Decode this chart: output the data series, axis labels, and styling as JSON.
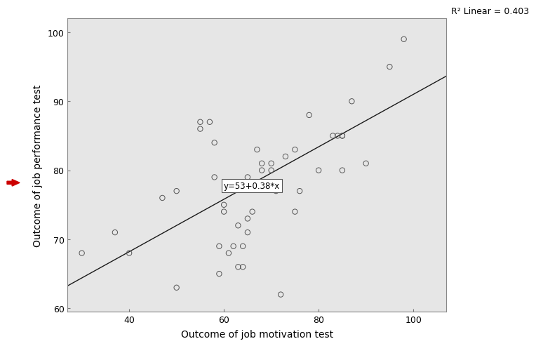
{
  "scatter_x": [
    30,
    37,
    40,
    47,
    50,
    50,
    55,
    55,
    57,
    58,
    58,
    59,
    59,
    60,
    60,
    61,
    62,
    63,
    63,
    64,
    64,
    65,
    65,
    65,
    66,
    67,
    68,
    68,
    69,
    70,
    70,
    71,
    72,
    73,
    75,
    75,
    76,
    78,
    80,
    83,
    84,
    85,
    85,
    85,
    87,
    90,
    95,
    98
  ],
  "scatter_y": [
    68,
    71,
    68,
    76,
    63,
    77,
    87,
    86,
    87,
    84,
    79,
    65,
    69,
    75,
    74,
    68,
    69,
    66,
    72,
    69,
    66,
    71,
    73,
    79,
    74,
    83,
    80,
    81,
    78,
    80,
    81,
    77,
    62,
    82,
    74,
    83,
    77,
    88,
    80,
    85,
    85,
    80,
    85,
    85,
    90,
    81,
    95,
    99
  ],
  "regression_intercept": 53,
  "regression_slope": 0.38,
  "equation_label": "y=53+0.38*x",
  "equation_x": 60,
  "equation_y": 77.8,
  "r2_label": "R² Linear = 0.403",
  "xlabel": "Outcome of job motivation test",
  "ylabel": "Outcome of job performance test",
  "xlim": [
    27,
    107
  ],
  "ylim": [
    59.5,
    102
  ],
  "xticks": [
    40,
    60,
    80,
    100
  ],
  "yticks": [
    60,
    70,
    80,
    90,
    100
  ],
  "bg_color": "#e6e6e6",
  "fig_bg_color": "#ffffff",
  "scatter_color": "none",
  "scatter_edgecolor": "#555555",
  "scatter_size": 28,
  "line_color": "#1a1a1a",
  "arrow_color": "#cc0000"
}
